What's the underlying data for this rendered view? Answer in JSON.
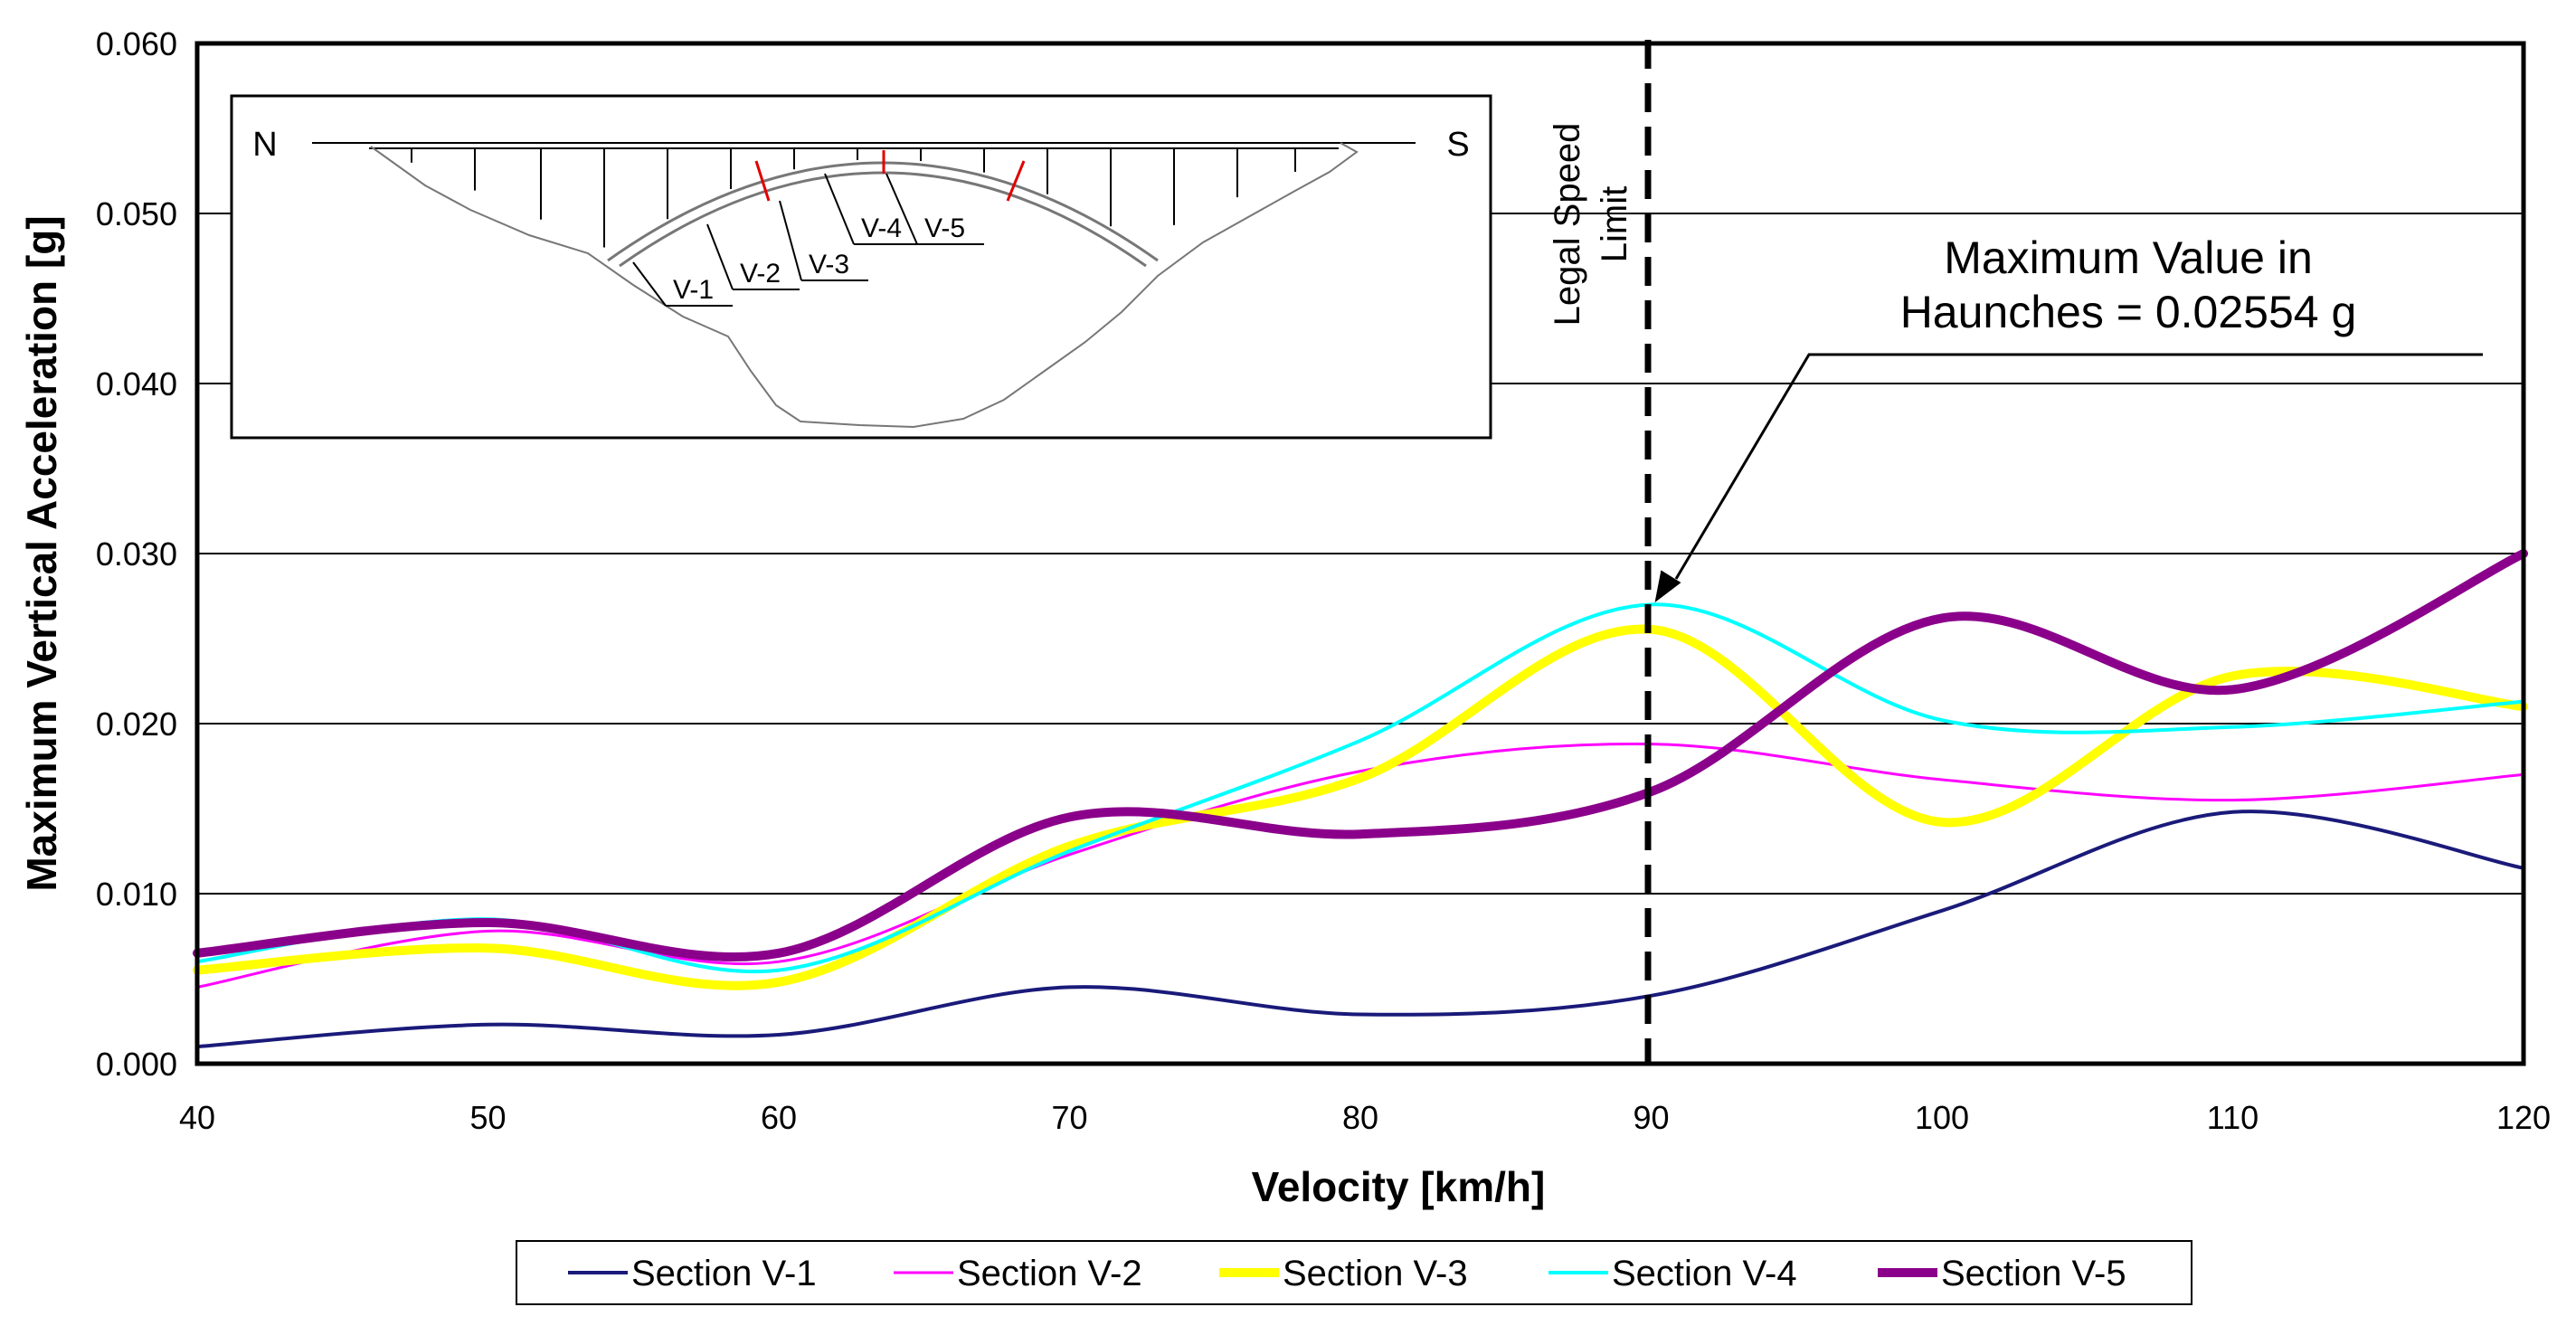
{
  "chart_data": {
    "type": "line",
    "xlabel": "Velocity [km/h]",
    "ylabel": "Maximum Vertical Acceleration [g]",
    "xlim": [
      40,
      120
    ],
    "ylim": [
      0,
      0.06
    ],
    "x_ticks": [
      40,
      50,
      60,
      70,
      80,
      90,
      100,
      110,
      120
    ],
    "y_ticks": [
      "0.000",
      "0.010",
      "0.020",
      "0.030",
      "0.040",
      "0.050",
      "0.060"
    ],
    "grid": "horizontal",
    "x": [
      40,
      50,
      60,
      70,
      80,
      90,
      100,
      110,
      120
    ],
    "series": [
      {
        "name": "Section V-1",
        "color": "#1a1a7a",
        "width": 4,
        "values": [
          0.001,
          0.0023,
          0.0017,
          0.0045,
          0.0029,
          0.004,
          0.009,
          0.0148,
          0.0115
        ]
      },
      {
        "name": "Section V-2",
        "color": "#ff00ff",
        "width": 3,
        "values": [
          0.0045,
          0.0078,
          0.006,
          0.0123,
          0.0172,
          0.0188,
          0.0167,
          0.0155,
          0.017
        ]
      },
      {
        "name": "Section V-3",
        "color": "#ffff00",
        "width": 10,
        "values": [
          0.0055,
          0.0068,
          0.0048,
          0.0128,
          0.0168,
          0.02554,
          0.0142,
          0.0228,
          0.021
        ]
      },
      {
        "name": "Section V-4",
        "color": "#00ffff",
        "width": 4,
        "values": [
          0.006,
          0.0085,
          0.0055,
          0.0125,
          0.019,
          0.027,
          0.0202,
          0.0198,
          0.0213
        ]
      },
      {
        "name": "Section V-5",
        "color": "#8b008b",
        "width": 10,
        "values": [
          0.0065,
          0.0083,
          0.0065,
          0.0145,
          0.0135,
          0.016,
          0.0262,
          0.022,
          0.03
        ]
      }
    ],
    "reference_line": {
      "x": 90,
      "label_line1": "Legal Speed",
      "label_line2": "Limit"
    },
    "annotation": {
      "line1": "Maximum Value in",
      "line2": "Haunches = 0.02554 g",
      "x": 90,
      "y": 0.0268
    },
    "inset": {
      "north": "N",
      "south": "S",
      "section_labels": [
        "V-1",
        "V-2",
        "V-3",
        "V-4",
        "V-5"
      ]
    }
  }
}
